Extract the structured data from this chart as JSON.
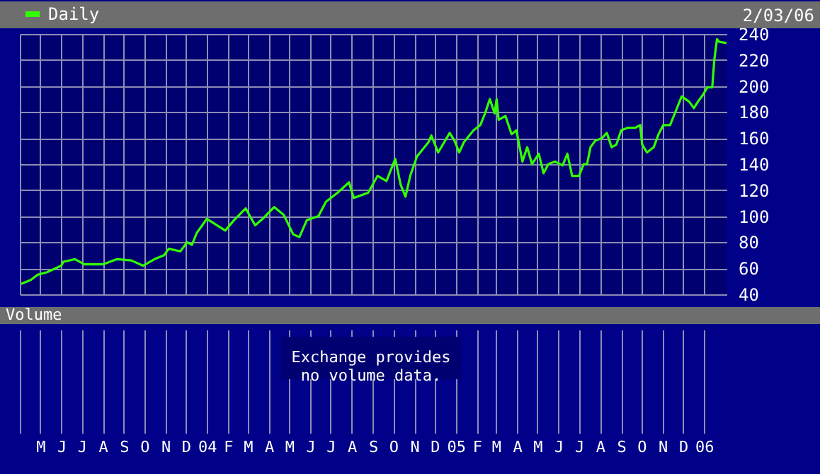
{
  "chart_data": {
    "type": "line",
    "annotations": [
      "2/03/06",
      "Volume",
      "Exchange provides no volume data."
    ],
    "xlim": [
      "2003-04-01",
      "2006-02-03"
    ],
    "xticks": [
      {
        "value": "2003-04-01",
        "label": null
      },
      {
        "value": "2003-05-01",
        "label": "M"
      },
      {
        "value": "2003-06-01",
        "label": "J"
      },
      {
        "value": "2003-07-01",
        "label": "J"
      },
      {
        "value": "2003-08-01",
        "label": "A"
      },
      {
        "value": "2003-09-01",
        "label": "S"
      },
      {
        "value": "2003-10-01",
        "label": "O"
      },
      {
        "value": "2003-11-01",
        "label": "N"
      },
      {
        "value": "2003-12-01",
        "label": "D"
      },
      {
        "value": "2004-01-01",
        "label": "04"
      },
      {
        "value": "2004-02-01",
        "label": "F"
      },
      {
        "value": "2004-03-01",
        "label": "M"
      },
      {
        "value": "2004-04-01",
        "label": "A"
      },
      {
        "value": "2004-05-01",
        "label": "M"
      },
      {
        "value": "2004-06-01",
        "label": "J"
      },
      {
        "value": "2004-07-01",
        "label": "J"
      },
      {
        "value": "2004-08-01",
        "label": "A"
      },
      {
        "value": "2004-09-01",
        "label": "S"
      },
      {
        "value": "2004-10-01",
        "label": "O"
      },
      {
        "value": "2004-11-01",
        "label": "N"
      },
      {
        "value": "2004-12-01",
        "label": "D"
      },
      {
        "value": "2005-01-01",
        "label": "05"
      },
      {
        "value": "2005-02-01",
        "label": "F"
      },
      {
        "value": "2005-03-01",
        "label": "M"
      },
      {
        "value": "2005-04-01",
        "label": "A"
      },
      {
        "value": "2005-05-01",
        "label": "M"
      },
      {
        "value": "2005-06-01",
        "label": "J"
      },
      {
        "value": "2005-07-01",
        "label": "J"
      },
      {
        "value": "2005-08-01",
        "label": "A"
      },
      {
        "value": "2005-09-01",
        "label": "S"
      },
      {
        "value": "2005-10-01",
        "label": "O"
      },
      {
        "value": "2005-11-01",
        "label": "N"
      },
      {
        "value": "2005-12-01",
        "label": "D"
      },
      {
        "value": "2006-01-01",
        "label": "06"
      }
    ],
    "y2lim": [
      40,
      240
    ],
    "y2ticks": [
      40,
      60,
      80,
      100,
      120,
      140,
      160,
      180,
      200,
      220,
      240
    ],
    "grid": true,
    "legend": "top left",
    "series": [
      {
        "name": "Daily",
        "color": "#33ff00",
        "axis": "y2",
        "x": [
          "2003-04-03",
          "2003-04-17",
          "2003-04-27",
          "2003-05-11",
          "2003-06-01",
          "2003-06-04",
          "2003-06-21",
          "2003-07-05",
          "2003-08-01",
          "2003-08-22",
          "2003-09-12",
          "2003-09-29",
          "2003-10-16",
          "2003-10-30",
          "2003-11-06",
          "2003-11-23",
          "2003-12-03",
          "2003-12-10",
          "2003-12-17",
          "2004-01-01",
          "2004-01-10",
          "2004-01-28",
          "2004-02-10",
          "2004-02-27",
          "2004-03-12",
          "2004-03-23",
          "2004-04-09",
          "2004-04-23",
          "2004-05-07",
          "2004-05-16",
          "2004-05-27",
          "2004-06-13",
          "2004-06-24",
          "2004-07-11",
          "2004-07-28",
          "2004-08-04",
          "2004-08-25",
          "2004-09-08",
          "2004-09-21",
          "2004-10-04",
          "2004-10-12",
          "2004-10-19",
          "2004-10-26",
          "2004-11-05",
          "2004-11-22",
          "2004-11-26",
          "2004-12-06",
          "2004-12-23",
          "2004-12-30",
          "2005-01-06",
          "2005-01-13",
          "2005-01-27",
          "2005-02-06",
          "2005-02-13",
          "2005-02-20",
          "2005-02-27",
          "2005-03-02",
          "2005-03-05",
          "2005-03-15",
          "2005-03-24",
          "2005-03-31",
          "2005-04-09",
          "2005-04-16",
          "2005-04-23",
          "2005-05-03",
          "2005-05-10",
          "2005-05-17",
          "2005-05-27",
          "2005-06-07",
          "2005-06-14",
          "2005-06-21",
          "2005-07-01",
          "2005-07-08",
          "2005-07-13",
          "2005-07-18",
          "2005-07-25",
          "2005-08-04",
          "2005-08-11",
          "2005-08-18",
          "2005-08-25",
          "2005-09-01",
          "2005-09-11",
          "2005-09-22",
          "2005-09-29",
          "2005-10-02",
          "2005-10-09",
          "2005-10-19",
          "2005-10-26",
          "2005-11-02",
          "2005-11-12",
          "2005-11-19",
          "2005-11-29",
          "2005-12-10",
          "2005-12-17",
          "2005-12-23",
          "2005-12-30",
          "2006-01-06",
          "2006-01-13",
          "2006-01-16",
          "2006-01-20",
          "2006-01-23",
          "2006-02-03"
        ],
        "values": [
          48,
          51,
          55,
          57,
          62,
          65,
          67,
          63,
          63,
          67,
          66,
          62,
          67,
          70,
          75,
          73,
          80,
          78,
          87,
          98,
          95,
          89,
          97,
          106,
          93,
          98,
          107,
          101,
          86,
          84,
          97,
          100,
          111,
          118,
          126,
          114,
          118,
          131,
          127,
          144,
          124,
          115,
          131,
          146,
          157,
          162,
          149,
          164,
          158,
          149,
          157,
          166,
          170,
          179,
          190,
          179,
          190,
          174,
          177,
          163,
          166,
          142,
          153,
          140,
          148,
          133,
          140,
          142,
          139,
          148,
          131,
          131,
          140,
          140,
          153,
          158,
          160,
          164,
          153,
          155,
          166,
          168,
          168,
          170,
          155,
          149,
          153,
          163,
          170,
          170,
          179,
          192,
          188,
          183,
          188,
          193,
          199,
          199,
          220,
          236,
          234,
          233
        ]
      }
    ]
  }
}
